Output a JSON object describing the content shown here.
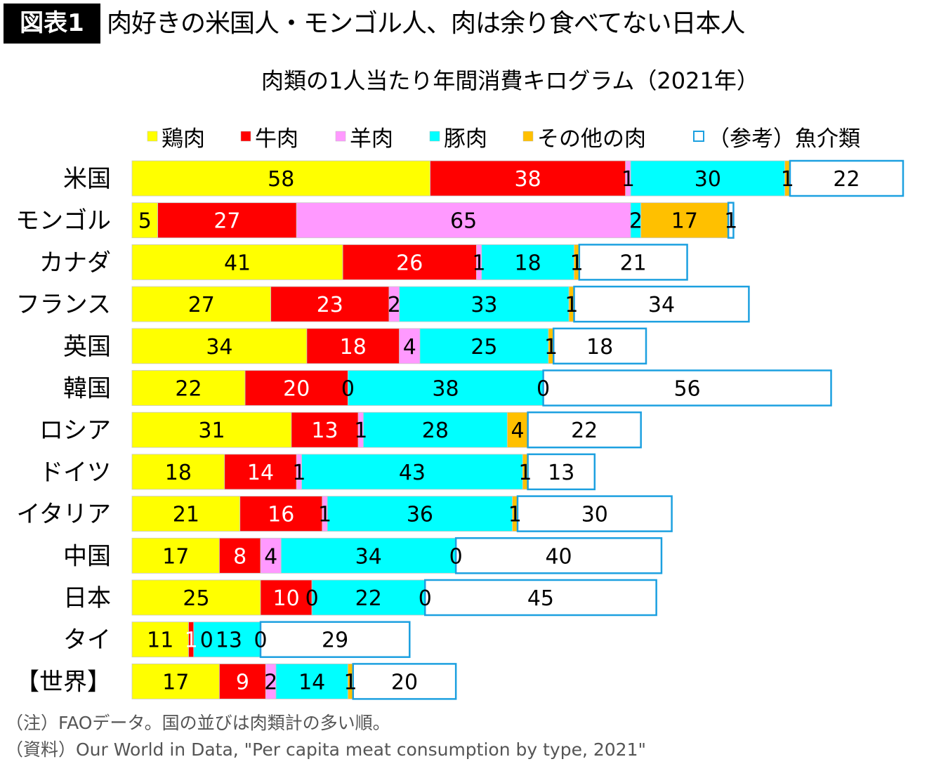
{
  "header": {
    "badge": "図表1",
    "title": "肉好きの米国人・モンゴル人、肉は余り食べてない日本人"
  },
  "chart_data": {
    "type": "bar",
    "orientation": "horizontal",
    "stacked": true,
    "title": "肉類の1人当たり年間消費キログラム（2021年）",
    "legend_position": "top",
    "grid": false,
    "categories": [
      "米国",
      "モンゴル",
      "カナダ",
      "フランス",
      "英国",
      "韓国",
      "ロシア",
      "ドイツ",
      "イタリア",
      "中国",
      "日本",
      "タイ",
      "【世界】"
    ],
    "series": [
      {
        "name": "鶏肉",
        "color": "#FFFF00",
        "values": [
          58,
          5,
          41,
          27,
          34,
          22,
          31,
          18,
          21,
          17,
          25,
          11,
          17
        ]
      },
      {
        "name": "牛肉",
        "color": "#FF0000",
        "values": [
          38,
          27,
          26,
          23,
          18,
          20,
          13,
          14,
          16,
          8,
          10,
          1,
          9
        ]
      },
      {
        "name": "羊肉",
        "color": "#FF99FF",
        "values": [
          1,
          65,
          1,
          2,
          4,
          0,
          1,
          1,
          1,
          4,
          0,
          0,
          2
        ]
      },
      {
        "name": "豚肉",
        "color": "#00FFFF",
        "values": [
          30,
          2,
          18,
          33,
          25,
          38,
          28,
          43,
          36,
          34,
          22,
          13,
          14
        ]
      },
      {
        "name": "その他の肉",
        "color": "#FFC000",
        "values": [
          1,
          17,
          1,
          1,
          1,
          0,
          4,
          1,
          1,
          0,
          0,
          0,
          1
        ]
      },
      {
        "name": "（参考）魚介類",
        "color": "#FFFFFF",
        "border": "#1CA0E0",
        "values": [
          22,
          1,
          21,
          34,
          18,
          56,
          22,
          13,
          30,
          40,
          45,
          29,
          20
        ]
      }
    ]
  },
  "notes": [
    "（注）FAOデータ。国の並びは肉類計の多い順。",
    "（資料）Our World in Data, \"Per capita meat consumption by type, 2021\""
  ]
}
